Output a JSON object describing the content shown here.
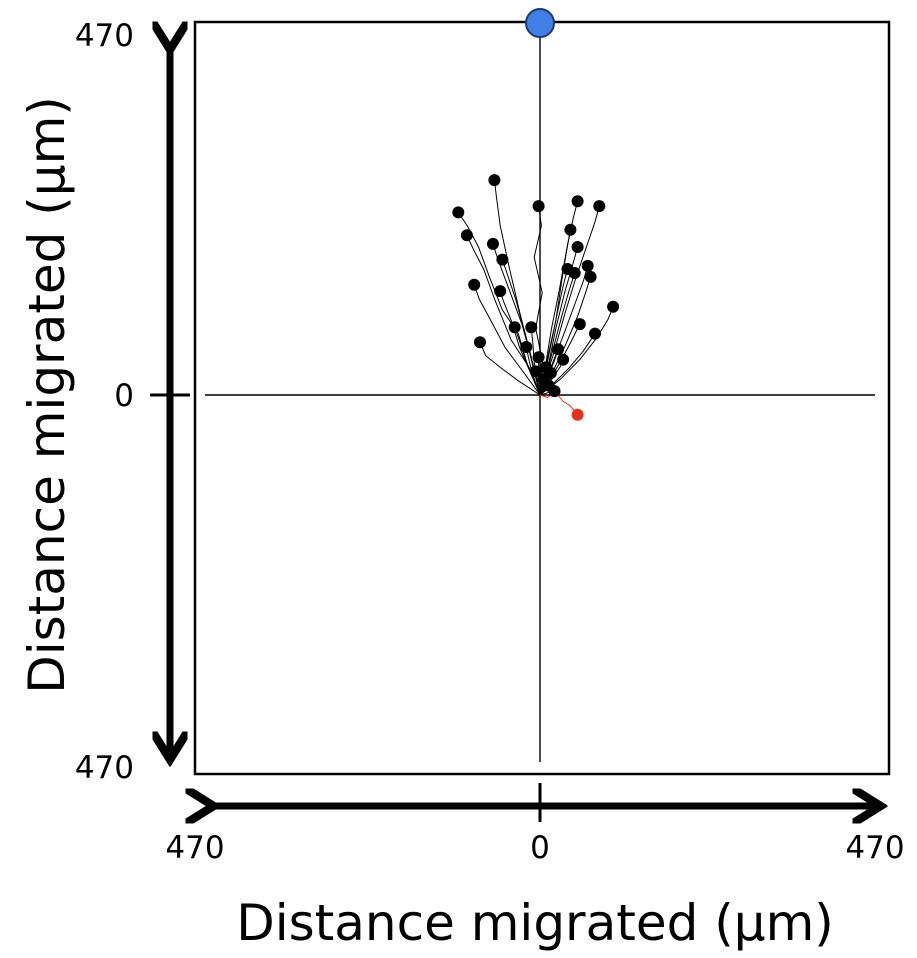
{
  "chart_data": {
    "type": "scatter",
    "xlabel": "Distance migrated (µm)",
    "ylabel": "Distance migrated (µm)",
    "x_ticks": [
      "470",
      "0",
      "470"
    ],
    "y_ticks": [
      "470",
      "0",
      "470"
    ],
    "xlim": [
      -470,
      470
    ],
    "ylim": [
      -470,
      470
    ],
    "grid": false,
    "colors": {
      "tracks": "#000000",
      "red_track": "#e8301c",
      "target": "#3f7fe6",
      "target_edge": "#1a3a7a",
      "axes": "#000000"
    },
    "target": {
      "x": 0,
      "y": 470
    },
    "series": [
      {
        "color": "#000000",
        "tracks": [
          {
            "end": [
              -113,
              232
            ],
            "path": [
              [
                0,
                0
              ],
              [
                -18,
                40
              ],
              [
                -30,
                78
              ],
              [
                -52,
                108
              ],
              [
                -70,
                150
              ],
              [
                -85,
                188
              ],
              [
                -100,
                214
              ],
              [
                -113,
                232
              ]
            ]
          },
          {
            "end": [
              -101,
              203
            ],
            "path": [
              [
                0,
                0
              ],
              [
                -15,
                35
              ],
              [
                -40,
                70
              ],
              [
                -62,
                120
              ],
              [
                -78,
                160
              ],
              [
                -92,
                185
              ],
              [
                -101,
                203
              ]
            ]
          },
          {
            "end": [
              -91,
              140
            ],
            "path": [
              [
                0,
                0
              ],
              [
                -22,
                28
              ],
              [
                -48,
                60
              ],
              [
                -70,
                98
              ],
              [
                -84,
                122
              ],
              [
                -91,
                140
              ]
            ]
          },
          {
            "end": [
              -83,
              67
            ],
            "path": [
              [
                0,
                0
              ],
              [
                -30,
                18
              ],
              [
                -55,
                35
              ],
              [
                -75,
                50
              ],
              [
                -83,
                67
              ]
            ]
          },
          {
            "end": [
              -63,
              273
            ],
            "path": [
              [
                0,
                0
              ],
              [
                -12,
                48
              ],
              [
                -28,
                105
              ],
              [
                -42,
                160
              ],
              [
                -55,
                215
              ],
              [
                -60,
                250
              ],
              [
                -63,
                273
              ]
            ]
          },
          {
            "end": [
              -65,
              192
            ],
            "path": [
              [
                0,
                0
              ],
              [
                -10,
                40
              ],
              [
                -25,
                90
              ],
              [
                -45,
                140
              ],
              [
                -58,
                172
              ],
              [
                -65,
                192
              ]
            ]
          },
          {
            "end": [
              -52,
              172
            ],
            "path": [
              [
                0,
                0
              ],
              [
                -8,
                30
              ],
              [
                -20,
                75
              ],
              [
                -33,
                120
              ],
              [
                -44,
                150
              ],
              [
                -52,
                172
              ]
            ]
          },
          {
            "end": [
              -55,
              132
            ],
            "path": [
              [
                0,
                0
              ],
              [
                -14,
                30
              ],
              [
                -28,
                60
              ],
              [
                -40,
                95
              ],
              [
                -50,
                118
              ],
              [
                -55,
                132
              ]
            ]
          },
          {
            "end": [
              -35,
              86
            ],
            "path": [
              [
                0,
                0
              ],
              [
                -10,
                22
              ],
              [
                -20,
                45
              ],
              [
                -28,
                68
              ],
              [
                -35,
                86
              ]
            ]
          },
          {
            "end": [
              -2,
              240
            ],
            "path": [
              [
                0,
                0
              ],
              [
                4,
                40
              ],
              [
                -6,
                85
              ],
              [
                3,
                130
              ],
              [
                -8,
                175
              ],
              [
                2,
                215
              ],
              [
                -2,
                240
              ]
            ]
          },
          {
            "end": [
              -12,
              86
            ],
            "path": [
              [
                0,
                0
              ],
              [
                -4,
                20
              ],
              [
                -8,
                42
              ],
              [
                -10,
                66
              ],
              [
                -12,
                86
              ]
            ]
          },
          {
            "end": [
              -19,
              61
            ],
            "path": [
              [
                0,
                0
              ],
              [
                -6,
                15
              ],
              [
                -12,
                32
              ],
              [
                -16,
                48
              ],
              [
                -19,
                61
              ]
            ]
          },
          {
            "end": [
              -2,
              48
            ],
            "path": [
              [
                0,
                0
              ],
              [
                -1,
                12
              ],
              [
                -2,
                28
              ],
              [
                -2,
                48
              ]
            ]
          },
          {
            "end": [
              8,
              35
            ],
            "path": [
              [
                0,
                0
              ],
              [
                3,
                10
              ],
              [
                6,
                22
              ],
              [
                8,
                35
              ]
            ]
          },
          {
            "end": [
              -6,
              30
            ],
            "path": [
              [
                0,
                0
              ],
              [
                -2,
                8
              ],
              [
                -4,
                20
              ],
              [
                -6,
                30
              ]
            ]
          },
          {
            "end": [
              5,
              20
            ],
            "path": [
              [
                0,
                0
              ],
              [
                2,
                6
              ],
              [
                4,
                14
              ],
              [
                5,
                20
              ]
            ]
          },
          {
            "end": [
              52,
              246
            ],
            "path": [
              [
                0,
                0
              ],
              [
                10,
                45
              ],
              [
                22,
                95
              ],
              [
                30,
                145
              ],
              [
                38,
                190
              ],
              [
                46,
                225
              ],
              [
                52,
                246
              ]
            ]
          },
          {
            "end": [
              82,
              240
            ],
            "path": [
              [
                0,
                0
              ],
              [
                18,
                50
              ],
              [
                35,
                105
              ],
              [
                50,
                150
              ],
              [
                65,
                190
              ],
              [
                76,
                220
              ],
              [
                82,
                240
              ]
            ]
          },
          {
            "end": [
              42,
              210
            ],
            "path": [
              [
                0,
                0
              ],
              [
                8,
                40
              ],
              [
                16,
                85
              ],
              [
                26,
                130
              ],
              [
                35,
                175
              ],
              [
                42,
                210
              ]
            ]
          },
          {
            "end": [
              52,
              188
            ],
            "path": [
              [
                0,
                0
              ],
              [
                12,
                40
              ],
              [
                22,
                85
              ],
              [
                34,
                130
              ],
              [
                45,
                165
              ],
              [
                52,
                188
              ]
            ]
          },
          {
            "end": [
              38,
              160
            ],
            "path": [
              [
                0,
                0
              ],
              [
                8,
                32
              ],
              [
                16,
                68
              ],
              [
                24,
                105
              ],
              [
                32,
                138
              ],
              [
                38,
                160
              ]
            ]
          },
          {
            "end": [
              48,
              155
            ],
            "path": [
              [
                0,
                0
              ],
              [
                10,
                30
              ],
              [
                20,
                65
              ],
              [
                30,
                100
              ],
              [
                40,
                132
              ],
              [
                48,
                155
              ]
            ]
          },
          {
            "end": [
              66,
              164
            ],
            "path": [
              [
                0,
                0
              ],
              [
                15,
                35
              ],
              [
                32,
                75
              ],
              [
                48,
                115
              ],
              [
                60,
                145
              ],
              [
                66,
                164
              ]
            ]
          },
          {
            "end": [
              70,
              150
            ],
            "path": [
              [
                0,
                0
              ],
              [
                18,
                30
              ],
              [
                36,
                65
              ],
              [
                52,
                100
              ],
              [
                63,
                130
              ],
              [
                70,
                150
              ]
            ]
          },
          {
            "end": [
              101,
              112
            ],
            "path": [
              [
                0,
                0
              ],
              [
                28,
                20
              ],
              [
                55,
                45
              ],
              [
                78,
                72
              ],
              [
                94,
                96
              ],
              [
                101,
                112
              ]
            ]
          },
          {
            "end": [
              55,
              90
            ],
            "path": [
              [
                0,
                0
              ],
              [
                14,
                20
              ],
              [
                28,
                42
              ],
              [
                42,
                66
              ],
              [
                55,
                90
              ]
            ]
          },
          {
            "end": [
              76,
              78
            ],
            "path": [
              [
                0,
                0
              ],
              [
                20,
                16
              ],
              [
                40,
                34
              ],
              [
                60,
                56
              ],
              [
                76,
                78
              ]
            ]
          },
          {
            "end": [
              25,
              58
            ],
            "path": [
              [
                0,
                0
              ],
              [
                6,
                15
              ],
              [
                14,
                30
              ],
              [
                20,
                44
              ],
              [
                25,
                58
              ]
            ]
          },
          {
            "end": [
              32,
              45
            ],
            "path": [
              [
                0,
                0
              ],
              [
                10,
                12
              ],
              [
                20,
                25
              ],
              [
                28,
                36
              ],
              [
                32,
                45
              ]
            ]
          },
          {
            "end": [
              15,
              28
            ],
            "path": [
              [
                0,
                0
              ],
              [
                5,
                8
              ],
              [
                10,
                18
              ],
              [
                15,
                28
              ]
            ]
          },
          {
            "end": [
              12,
              12
            ],
            "path": [
              [
                0,
                0
              ],
              [
                4,
                4
              ],
              [
                8,
                8
              ],
              [
                12,
                12
              ]
            ]
          },
          {
            "end": [
              20,
              5
            ],
            "path": [
              [
                0,
                0
              ],
              [
                8,
                2
              ],
              [
                14,
                4
              ],
              [
                20,
                5
              ]
            ]
          }
        ]
      },
      {
        "color": "#e8301c",
        "tracks": [
          {
            "end": [
              52,
              -25
            ],
            "path": [
              [
                0,
                0
              ],
              [
                10,
                -3
              ],
              [
                22,
                3
              ],
              [
                32,
                -8
              ],
              [
                42,
                -14
              ],
              [
                52,
                -25
              ]
            ]
          }
        ]
      }
    ]
  }
}
